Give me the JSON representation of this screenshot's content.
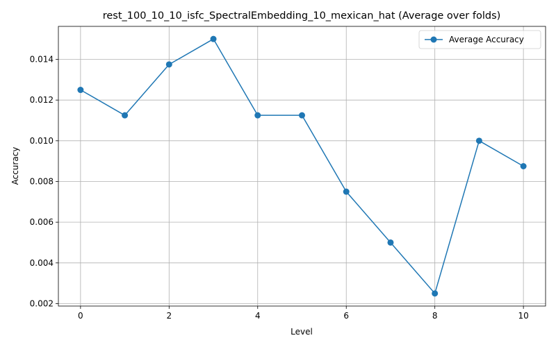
{
  "chart_data": {
    "type": "line",
    "title": "rest_100_10_10_isfc_SpectralEmbedding_10_mexican_hat (Average over folds)",
    "xlabel": "Level",
    "ylabel": "Accuracy",
    "xlim": [
      -0.5,
      10.5
    ],
    "ylim": [
      0.00188,
      0.01562
    ],
    "xticks": [
      0,
      2,
      4,
      6,
      8,
      10
    ],
    "xtick_labels": [
      "0",
      "2",
      "4",
      "6",
      "8",
      "10"
    ],
    "yticks": [
      0.002,
      0.004,
      0.006,
      0.008,
      0.01,
      0.012,
      0.014
    ],
    "ytick_labels": [
      "0.002",
      "0.004",
      "0.006",
      "0.008",
      "0.010",
      "0.012",
      "0.014"
    ],
    "grid": true,
    "legend_position": "top-right",
    "series": [
      {
        "name": "Average Accuracy",
        "color": "#1f77b4",
        "marker": "circle",
        "x": [
          0,
          1,
          2,
          3,
          4,
          5,
          6,
          7,
          8,
          9,
          10
        ],
        "y": [
          0.0125,
          0.01125,
          0.01375,
          0.015,
          0.01125,
          0.01125,
          0.0075,
          0.005,
          0.0025,
          0.01,
          0.00875
        ]
      }
    ]
  }
}
